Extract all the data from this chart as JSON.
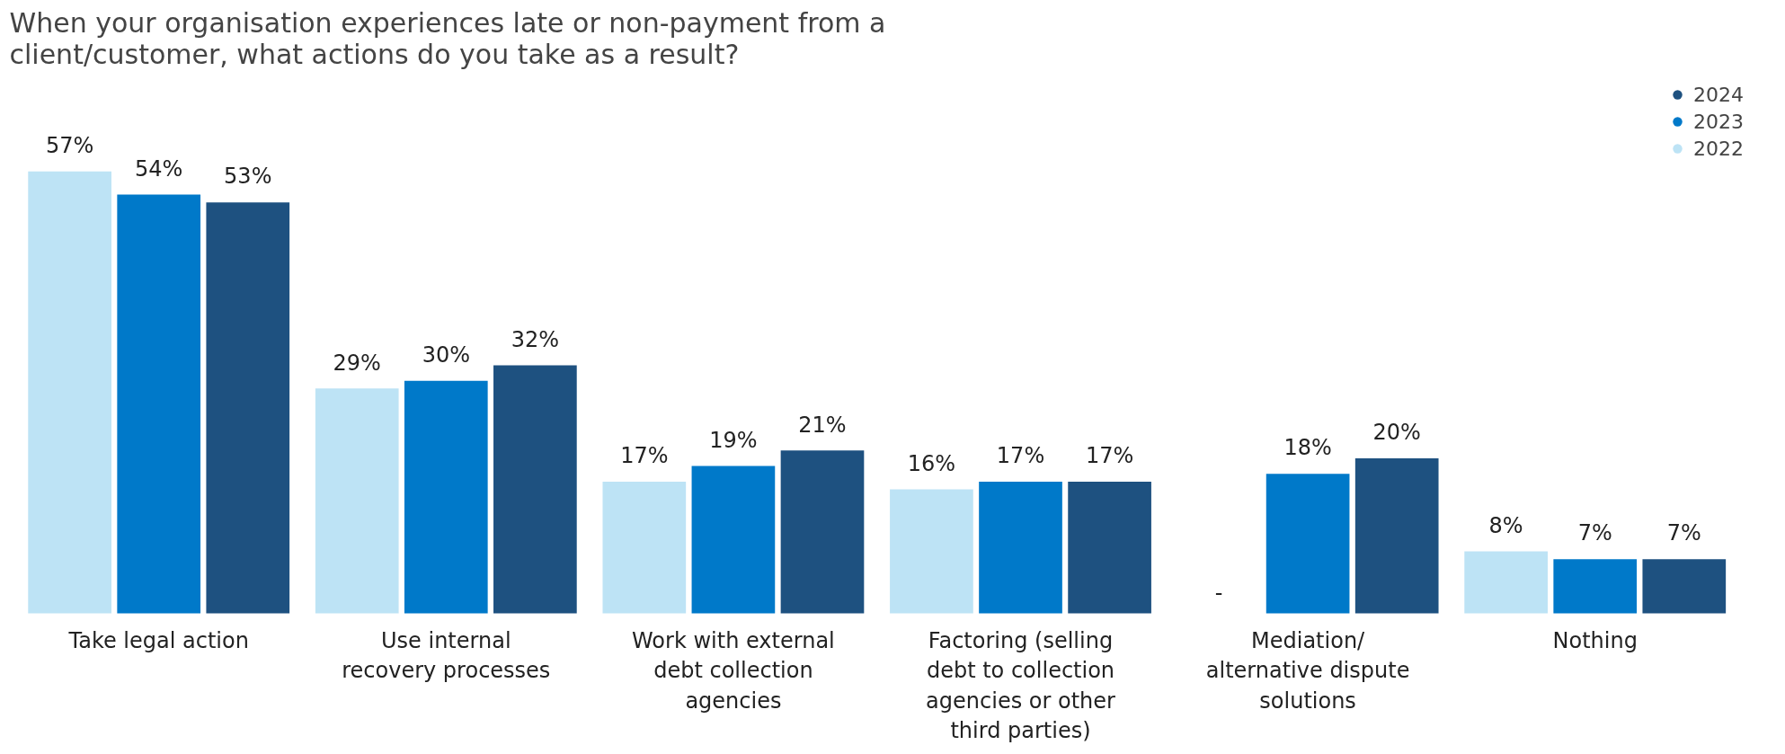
{
  "chart_data": {
    "type": "bar",
    "title": "When your organisation experiences late or non-payment from a client/customer, what actions do you take as a result?",
    "categories": [
      "Take legal action",
      "Use internal recovery processes",
      "Work with external debt collection agencies",
      "Factoring (selling debt to collection agencies or other third parties)",
      "Mediation/ alternative dispute solutions",
      "Nothing"
    ],
    "series": [
      {
        "name": "2022",
        "color": "#bde3f5",
        "values": [
          57,
          29,
          17,
          16,
          null,
          8
        ],
        "value_labels": [
          "57%",
          "29%",
          "17%",
          "16%",
          "-",
          "8%"
        ]
      },
      {
        "name": "2023",
        "color": "#0079c9",
        "values": [
          54,
          30,
          19,
          17,
          18,
          7
        ],
        "value_labels": [
          "54%",
          "30%",
          "19%",
          "17%",
          "18%",
          "7%"
        ]
      },
      {
        "name": "2024",
        "color": "#1e5180",
        "values": [
          53,
          32,
          21,
          17,
          20,
          7
        ],
        "value_labels": [
          "53%",
          "32%",
          "21%",
          "17%",
          "20%",
          "7%"
        ]
      }
    ],
    "legend": "top right"
  }
}
